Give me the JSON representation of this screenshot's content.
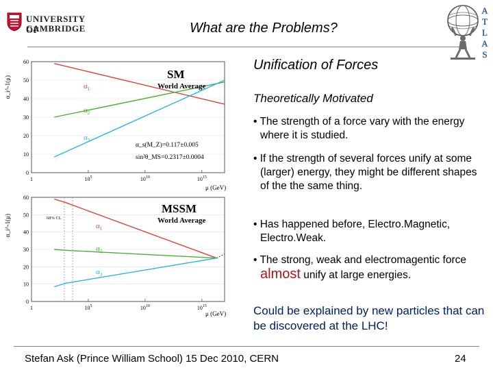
{
  "logo": {
    "line1": "UNIVERSITY OF",
    "line2": "CAMBRIDGE"
  },
  "title": "What are the Problems?",
  "atlas_letters": [
    "A",
    "T",
    "L",
    "A",
    "S"
  ],
  "section": {
    "heading": "Unification of Forces",
    "subheading": "Theoretically Motivated"
  },
  "bullets": [
    {
      "text": "• The strength of a force vary with the energy where it is studied."
    },
    {
      "text": "• If the strength of several forces unify at some (larger) energy, they might be different shapes of the the same thing."
    },
    {
      "text": "• Has happened before, Electro.Magnetic, Electro.Weak."
    },
    {
      "before": "• The strong, weak and electromagentic force ",
      "emph": "almost",
      "after": " unify at large energies."
    }
  ],
  "conclusion": "Could be explained by new particles that can be discovered at the LHC!",
  "footer": {
    "text": "Stefan Ask (Prince William School) 15 Dec 2010, CERN",
    "page": "24"
  },
  "chart_data": [
    {
      "type": "line",
      "title": "SM",
      "subtitle": "World Average",
      "xlabel": "μ (GeV)",
      "ylabel": "α_i^-1(μ)",
      "xscale": "log",
      "xlim": [
        1,
        1e+17
      ],
      "ylim": [
        0,
        60
      ],
      "x_ticks": [
        "1",
        "10^5",
        "10^10",
        "10^15"
      ],
      "y_ticks": [
        "0",
        "10",
        "20",
        "30",
        "40",
        "50",
        "60"
      ],
      "annotations": [
        "α_s(M_Z)=0.117±0.005",
        "sin²θ_MS=0.2317±0.0004"
      ],
      "colors": {
        "alpha1": "#d9453e",
        "alpha2": "#4caf30",
        "alpha3": "#27b4e8"
      },
      "series": [
        {
          "name": "α1",
          "x": [
            100,
            1e+17
          ],
          "y": [
            59,
            37
          ]
        },
        {
          "name": "α2",
          "x": [
            100,
            1e+17
          ],
          "y": [
            30,
            49
          ]
        },
        {
          "name": "α3",
          "x": [
            100,
            1e+17
          ],
          "y": [
            8.5,
            50
          ]
        }
      ]
    },
    {
      "type": "line",
      "title": "MSSM",
      "subtitle": "World Average",
      "xlabel": "μ (GeV)",
      "ylabel": "α_i^-1(μ)",
      "xscale": "log",
      "xlim": [
        1,
        1e+17
      ],
      "ylim": [
        0,
        60
      ],
      "x_ticks": [
        "1",
        "10^5",
        "10^10",
        "10^15"
      ],
      "y_ticks": [
        "0",
        "10",
        "20",
        "30",
        "40",
        "50",
        "60"
      ],
      "annotations": [
        "68% CL"
      ],
      "colors": {
        "alpha1": "#d9453e",
        "alpha2": "#4caf30",
        "alpha3": "#27b4e8"
      },
      "series": [
        {
          "name": "α1",
          "x": [
            100,
            1000,
            2e+16
          ],
          "y": [
            59,
            57,
            25
          ]
        },
        {
          "name": "α2",
          "x": [
            100,
            1000,
            2e+16
          ],
          "y": [
            30,
            29.5,
            25
          ]
        },
        {
          "name": "α3",
          "x": [
            100,
            1000,
            2e+16
          ],
          "y": [
            8.5,
            10.5,
            25
          ]
        }
      ]
    }
  ]
}
